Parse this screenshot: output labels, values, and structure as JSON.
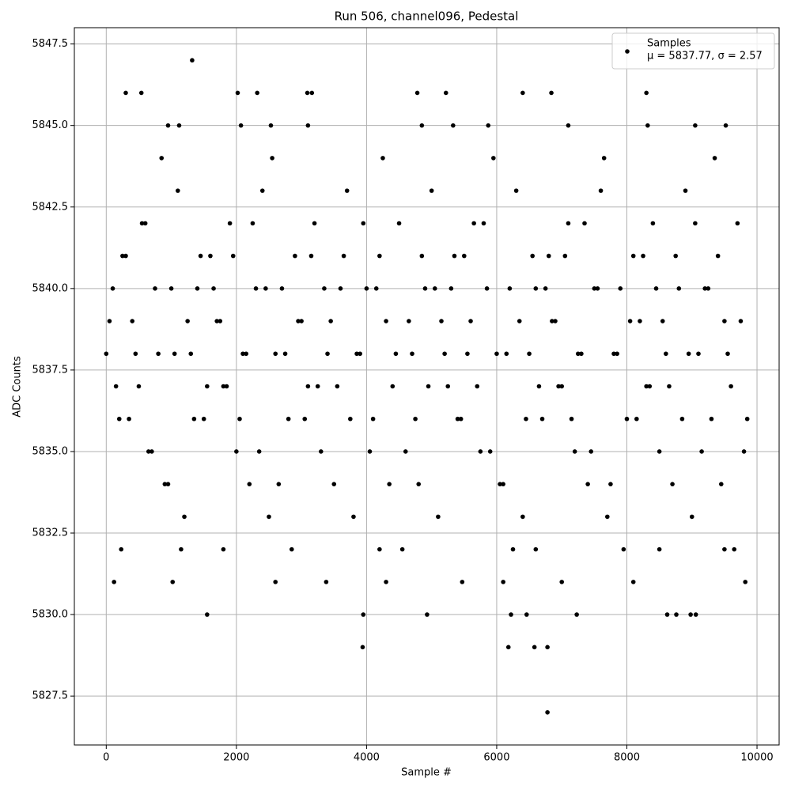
{
  "chart_data": {
    "type": "scatter",
    "title": "Run 506, channel096, Pedestal",
    "xlabel": "Sample #",
    "ylabel": "ADC Counts",
    "xlim": [
      -490,
      10340
    ],
    "ylim": [
      5826.0,
      5848.0
    ],
    "xticks": [
      0,
      2000,
      4000,
      6000,
      8000,
      10000
    ],
    "yticks": [
      5827.5,
      {
        "value": 5830.0,
        "label": "5830.0"
      },
      5832.5,
      {
        "value": 5835.0,
        "label": "5835.0"
      },
      5837.5,
      {
        "value": 5840.0,
        "label": "5840.0"
      },
      5842.5,
      {
        "value": 5845.0,
        "label": "5845.0"
      },
      5847.5
    ],
    "grid": true,
    "legend": "upper right",
    "series": [
      {
        "name": "Samples",
        "legend_label": "μ = 5837.77, σ = 2.57",
        "color": "#000000",
        "x": [
          0,
          100,
          200,
          300,
          400,
          500,
          600,
          700,
          800,
          900,
          1000,
          1100,
          1200,
          1300,
          1400,
          1500,
          1600,
          1700,
          1800,
          1900,
          2000,
          2100,
          2200,
          2300,
          2400,
          2500,
          2600,
          2700,
          2800,
          2900,
          3000,
          3100,
          3200,
          3300,
          3400,
          3500,
          3600,
          3700,
          3800,
          3900,
          4000,
          4100,
          4200,
          4300,
          4400,
          4500,
          4600,
          4700,
          4800,
          4900,
          5000,
          5100,
          5200,
          5300,
          5400,
          5500,
          5600,
          5700,
          5800,
          5900,
          6000,
          6100,
          6200,
          6300,
          6400,
          6500,
          6600,
          6700,
          6800,
          6900,
          7000,
          7100,
          7200,
          7300,
          7400,
          7500,
          7600,
          7700,
          7800,
          7900,
          8000,
          8100,
          8200,
          8300,
          8400,
          8500,
          8600,
          8700,
          8800,
          8900,
          9000,
          9100,
          9200,
          9300,
          9400,
          9500,
          9600,
          9700,
          9800,
          50,
          150,
          250,
          350,
          450,
          550,
          650,
          750,
          850,
          950,
          1050,
          1150,
          1250,
          1350,
          1450,
          1550,
          1650,
          1750,
          1850,
          1950,
          2050,
          2150,
          2250,
          2350,
          2450,
          2550,
          2650,
          2750,
          2850,
          2950,
          3050,
          3150,
          3250,
          3350,
          3450,
          3550,
          3650,
          3750,
          3850,
          3950,
          4050,
          4150,
          4250,
          4350,
          4450,
          4550,
          4650,
          4750,
          4850,
          4950,
          5050,
          5150,
          5250,
          5350,
          5450,
          5550,
          5650,
          5750,
          5850,
          5950,
          6050,
          6150,
          6250,
          6350,
          6450,
          6550,
          6650,
          6750,
          6850,
          6950,
          7050,
          7150,
          7250,
          7350,
          7450,
          7550,
          7650,
          7750,
          7850,
          7950,
          8050,
          8150,
          8250,
          8350,
          8450,
          8550,
          8650,
          8750,
          8850,
          8950,
          9050,
          9150,
          9250,
          9350,
          9450,
          9550,
          9650,
          9750,
          9850,
          1320,
          300,
          540,
          2020,
          2320,
          3090,
          3160,
          4780,
          5220,
          6400,
          6840,
          8300,
          1550,
          3950,
          4930,
          6220,
          6460,
          7230,
          8620,
          8760,
          8980,
          9060,
          3940,
          6180,
          6580,
          6780,
          6780,
          120,
          1020,
          2600,
          3380,
          4300,
          5470,
          6100,
          7000,
          8100,
          9820,
          230,
          1800,
          4200,
          6600,
          8500,
          9500,
          950,
          1120,
          2070,
          2530,
          3100,
          4850,
          5330,
          5870,
          7100,
          8320,
          9050,
          9520
        ],
        "values": [
          5838,
          5840,
          5836,
          5841,
          5839,
          5837,
          5842,
          5835,
          5838,
          5834,
          5840,
          5843,
          5833,
          5838,
          5840,
          5836,
          5841,
          5839,
          5837,
          5842,
          5835,
          5838,
          5834,
          5840,
          5843,
          5833,
          5838,
          5840,
          5836,
          5841,
          5839,
          5837,
          5842,
          5835,
          5838,
          5834,
          5840,
          5843,
          5833,
          5838,
          5840,
          5836,
          5841,
          5839,
          5837,
          5842,
          5835,
          5838,
          5834,
          5840,
          5843,
          5833,
          5838,
          5840,
          5836,
          5841,
          5839,
          5837,
          5842,
          5835,
          5838,
          5834,
          5840,
          5843,
          5833,
          5838,
          5840,
          5836,
          5841,
          5839,
          5837,
          5842,
          5835,
          5838,
          5834,
          5840,
          5843,
          5833,
          5838,
          5840,
          5836,
          5841,
          5839,
          5837,
          5842,
          5835,
          5838,
          5834,
          5840,
          5843,
          5833,
          5838,
          5840,
          5836,
          5841,
          5839,
          5837,
          5842,
          5835,
          5839,
          5837,
          5841,
          5836,
          5838,
          5842,
          5835,
          5840,
          5844,
          5834,
          5838,
          5832,
          5839,
          5836,
          5841,
          5837,
          5840,
          5839,
          5837,
          5841,
          5836,
          5838,
          5842,
          5835,
          5840,
          5844,
          5834,
          5838,
          5832,
          5839,
          5836,
          5841,
          5837,
          5840,
          5839,
          5837,
          5841,
          5836,
          5838,
          5842,
          5835,
          5840,
          5844,
          5834,
          5838,
          5832,
          5839,
          5836,
          5841,
          5837,
          5840,
          5839,
          5837,
          5841,
          5836,
          5838,
          5842,
          5835,
          5840,
          5844,
          5834,
          5838,
          5832,
          5839,
          5836,
          5841,
          5837,
          5840,
          5839,
          5837,
          5841,
          5836,
          5838,
          5842,
          5835,
          5840,
          5844,
          5834,
          5838,
          5832,
          5839,
          5836,
          5841,
          5837,
          5840,
          5839,
          5837,
          5841,
          5836,
          5838,
          5842,
          5835,
          5840,
          5844,
          5834,
          5838,
          5832,
          5839,
          5836,
          5847,
          5846,
          5846,
          5846,
          5846,
          5846,
          5846,
          5846,
          5846,
          5846,
          5846,
          5846,
          5830,
          5830,
          5830,
          5830,
          5830,
          5830,
          5830,
          5830,
          5830,
          5830,
          5829,
          5829,
          5829,
          5829,
          5827,
          5831,
          5831,
          5831,
          5831,
          5831,
          5831,
          5831,
          5831,
          5831,
          5831,
          5832,
          5832,
          5832,
          5832,
          5832,
          5832,
          5845,
          5845,
          5845,
          5845,
          5845,
          5845,
          5845,
          5845,
          5845,
          5845,
          5845,
          5845
        ]
      }
    ]
  }
}
